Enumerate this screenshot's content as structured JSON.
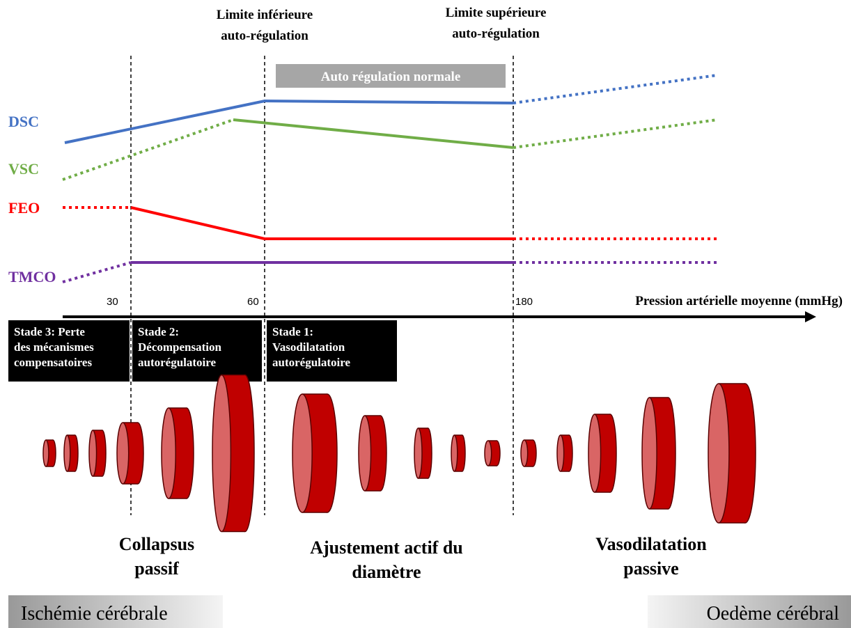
{
  "header": {
    "lower_limit": [
      "Limite inférieure",
      "auto-régulation"
    ],
    "upper_limit": [
      "Limite supérieure",
      "auto-régulation"
    ],
    "normal_band": "Auto régulation normale"
  },
  "curves": [
    {
      "label": "DSC"
    },
    {
      "label": "VSC"
    },
    {
      "label": "FEO"
    },
    {
      "label": "TMCO"
    }
  ],
  "axis": {
    "ticks": [
      "30",
      "60",
      "180"
    ],
    "label": "Pression artérielle moyenne (mmHg)"
  },
  "stages": [
    {
      "lines": [
        "Stade 3: Perte",
        "des mécanismes",
        "compensatoires"
      ]
    },
    {
      "lines": [
        "Stade 2:",
        "Décompensation",
        "autorégulatoire"
      ]
    },
    {
      "lines": [
        "Stade 1:",
        "Vasodilatation",
        "autorégulatoire"
      ]
    }
  ],
  "phases": [
    {
      "lines": [
        "Collapsus",
        "passif"
      ]
    },
    {
      "lines": [
        "Ajustement actif du",
        "diamètre"
      ]
    },
    {
      "lines": [
        "Vasodilatation",
        "passive"
      ]
    }
  ],
  "footer": {
    "left": "Ischémie cérébrale",
    "right": "Oedème cérébral"
  }
}
